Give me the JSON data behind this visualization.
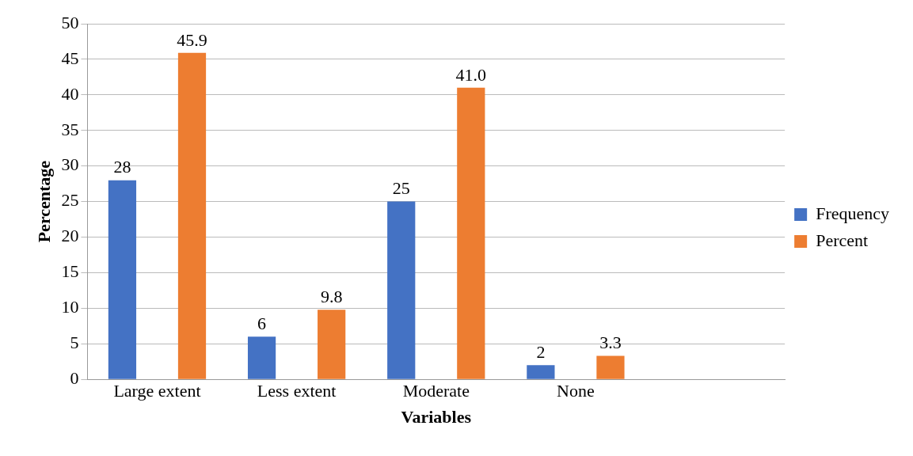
{
  "chart_data": {
    "type": "bar",
    "xlabel": "Variables",
    "ylabel": "Percentage",
    "categories": [
      "Large extent",
      "Less extent",
      "Moderate",
      "None",
      null
    ],
    "series": [
      {
        "name": "Frequency",
        "color": "#4472c4",
        "values": [
          28,
          6,
          25,
          2,
          null
        ],
        "value_labels": [
          "28",
          "6",
          "25",
          "2",
          null
        ]
      },
      {
        "name": "Percent",
        "color": "#ed7d31",
        "values": [
          45.9,
          9.8,
          41.0,
          3.3,
          null
        ],
        "value_labels": [
          "45.9",
          "9.8",
          "41.0",
          "3.3",
          null
        ]
      }
    ],
    "ylim": [
      0,
      50
    ],
    "yticks": [
      0,
      5,
      10,
      15,
      20,
      25,
      30,
      35,
      40,
      45,
      50
    ],
    "grid": "y",
    "legend": "right"
  }
}
